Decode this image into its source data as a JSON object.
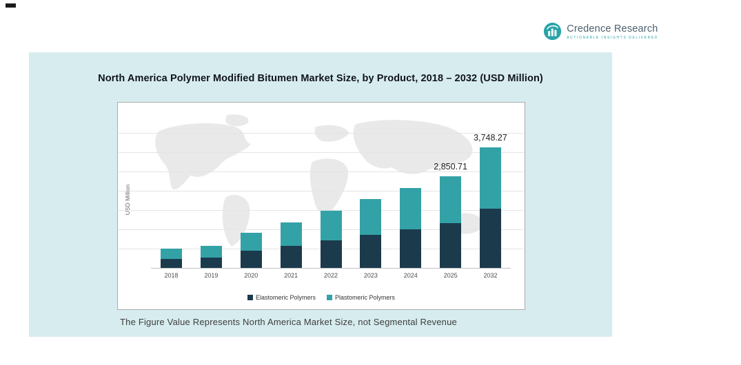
{
  "logo": {
    "name": "Credence Research",
    "tagline": "Actionable Insights Delivered",
    "accent_color": "#2aa3a8",
    "text_color": "#4d5f6b"
  },
  "panel": {
    "background": "#d7ecee",
    "footnote": "The Figure Value Represents North America Market Size, not Segmental Revenue"
  },
  "chart_data": {
    "type": "bar",
    "stacked": true,
    "title": "North America Polymer Modified Bitumen Market Size, by Product, 2018 – 2032 (USD Million)",
    "xlabel": "",
    "ylabel": "USD Million",
    "categories": [
      "2018",
      "2019",
      "2020",
      "2021",
      "2022",
      "2023",
      "2024",
      "2025",
      "2032"
    ],
    "series": [
      {
        "name": "Elastomeric Polymers",
        "color": "#1b3b4d",
        "values": [
          290,
          320,
          530,
          680,
          850,
          1040,
          1210,
          1390,
          1850
        ]
      },
      {
        "name": "Plastomeric Polymers",
        "color": "#33a2a7",
        "values": [
          320,
          360,
          570,
          740,
          930,
          1110,
          1280,
          1460.71,
          1898.27
        ]
      }
    ],
    "totals_shown": [
      {
        "category": "2025",
        "label": "2,850.71"
      },
      {
        "category": "2032",
        "label": "3,748.27"
      }
    ],
    "ylim": [
      0,
      4200
    ],
    "grid": true,
    "legend_position": "bottom"
  }
}
